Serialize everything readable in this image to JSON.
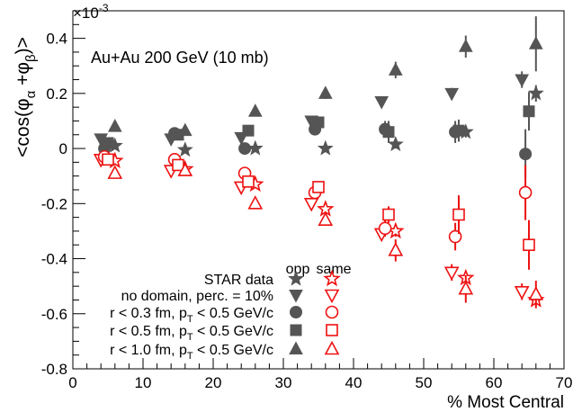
{
  "chart_data": {
    "type": "scatter",
    "title": "",
    "annotation": "Au+Au 200 GeV (10 mb)",
    "xlabel": "% Most Central",
    "ylabel_parts": {
      "main": "<cos(φ",
      "sub1": "α",
      "mid": " +φ",
      "sub2": "β",
      "end": ")>"
    },
    "yscale_label": "×10",
    "yscale_exp": "-3",
    "xlim": [
      0,
      70
    ],
    "ylim": [
      -0.8,
      0.5
    ],
    "x_ticks": [
      0,
      10,
      20,
      30,
      40,
      50,
      60,
      70
    ],
    "y_ticks": [
      -0.8,
      -0.6,
      -0.4,
      -0.2,
      0,
      0.2,
      0.4
    ],
    "x_tick_labels": [
      "0",
      "10",
      "20",
      "30",
      "40",
      "50",
      "60",
      "70"
    ],
    "y_tick_labels": [
      "-0.8",
      "-0.6",
      "-0.4",
      "-0.2",
      "0",
      "0.2",
      "0.4"
    ],
    "legend_headers": {
      "opp": "opp",
      "same": "same"
    },
    "legend_rows": [
      {
        "label": "STAR data",
        "marker": "star"
      },
      {
        "label": "no domain, perc. = 10%",
        "marker": "tri-down"
      },
      {
        "label_main": "r < 0.3 fm, p",
        "label_sub": "T",
        "label_end": " < 0.5 GeV/c",
        "marker": "circle"
      },
      {
        "label_main": "r < 0.5 fm, p",
        "label_sub": "T",
        "label_end": " < 0.5 GeV/c",
        "marker": "square"
      },
      {
        "label_main": "r < 1.0 fm, p",
        "label_sub": "T",
        "label_end": " < 0.5 GeV/c",
        "marker": "tri-up"
      }
    ],
    "colors": {
      "opp": "#555555",
      "same": "#ee1111"
    },
    "series": [
      {
        "group": "opp",
        "marker": "star",
        "x": [
          6,
          16,
          26,
          36,
          46,
          56,
          66
        ],
        "y": [
          0.01,
          -0.005,
          0.0,
          0.0,
          0.015,
          0.06,
          0.2
        ],
        "err": [
          0.01,
          0.01,
          0.01,
          0.01,
          0.015,
          0.02,
          0.03
        ]
      },
      {
        "group": "same",
        "marker": "star",
        "x": [
          6,
          16,
          26,
          36,
          46,
          56,
          66
        ],
        "y": [
          -0.045,
          -0.075,
          -0.13,
          -0.22,
          -0.3,
          -0.47,
          -0.55
        ],
        "err": [
          0.01,
          0.01,
          0.01,
          0.015,
          0.02,
          0.02,
          0.02
        ]
      },
      {
        "group": "opp",
        "marker": "tri-down",
        "x": [
          4,
          14,
          24,
          34,
          44,
          54,
          64
        ],
        "y": [
          0.035,
          0.035,
          0.04,
          0.1,
          0.17,
          0.2,
          0.25
        ],
        "err": [
          0.005,
          0.005,
          0.01,
          0.01,
          0.02,
          0.02,
          0.03
        ]
      },
      {
        "group": "same",
        "marker": "tri-down",
        "x": [
          4,
          14,
          24,
          34,
          44,
          54,
          64
        ],
        "y": [
          -0.04,
          -0.08,
          -0.14,
          -0.2,
          -0.31,
          -0.45,
          -0.52
        ],
        "err": [
          0.005,
          0.01,
          0.01,
          0.015,
          0.02,
          0.03,
          0.03
        ]
      },
      {
        "group": "opp",
        "marker": "circle",
        "x": [
          4.5,
          14.5,
          24.5,
          34.5,
          44.5,
          54.5,
          64.5
        ],
        "y": [
          0.0,
          0.055,
          0.0,
          0.07,
          0.07,
          0.06,
          -0.02
        ],
        "err": [
          0.01,
          0.01,
          0.01,
          0.02,
          0.03,
          0.04,
          0.09
        ]
      },
      {
        "group": "same",
        "marker": "circle",
        "x": [
          4.5,
          14.5,
          24.5,
          34.5,
          44.5,
          54.5,
          64.5
        ],
        "y": [
          -0.03,
          -0.04,
          -0.09,
          -0.16,
          -0.29,
          -0.32,
          -0.16
        ],
        "err": [
          0.01,
          0.01,
          0.015,
          0.02,
          0.03,
          0.05,
          0.1
        ]
      },
      {
        "group": "opp",
        "marker": "square",
        "x": [
          5,
          15,
          25,
          35,
          45,
          55,
          65
        ],
        "y": [
          0.02,
          0.05,
          0.065,
          0.095,
          0.06,
          0.065,
          0.135
        ],
        "err": [
          0.01,
          0.01,
          0.015,
          0.02,
          0.04,
          0.04,
          0.07
        ]
      },
      {
        "group": "same",
        "marker": "square",
        "x": [
          5,
          15,
          25,
          35,
          45,
          55,
          65
        ],
        "y": [
          -0.04,
          -0.06,
          -0.12,
          -0.14,
          -0.24,
          -0.24,
          -0.35
        ],
        "err": [
          0.01,
          0.01,
          0.015,
          0.02,
          0.03,
          0.07,
          0.09
        ]
      },
      {
        "group": "opp",
        "marker": "tri-up",
        "x": [
          6,
          16,
          26,
          36,
          46,
          56,
          66
        ],
        "y": [
          0.08,
          0.065,
          0.135,
          0.2,
          0.285,
          0.37,
          0.38
        ],
        "err": [
          0.01,
          0.01,
          0.015,
          0.02,
          0.03,
          0.04,
          0.1
        ]
      },
      {
        "group": "same",
        "marker": "tri-up",
        "x": [
          6,
          16,
          26,
          36,
          46,
          56,
          66
        ],
        "y": [
          -0.09,
          -0.08,
          -0.2,
          -0.26,
          -0.37,
          -0.51,
          -0.53
        ],
        "err": [
          0.01,
          0.01,
          0.015,
          0.02,
          0.04,
          0.05,
          0.05
        ]
      }
    ]
  }
}
